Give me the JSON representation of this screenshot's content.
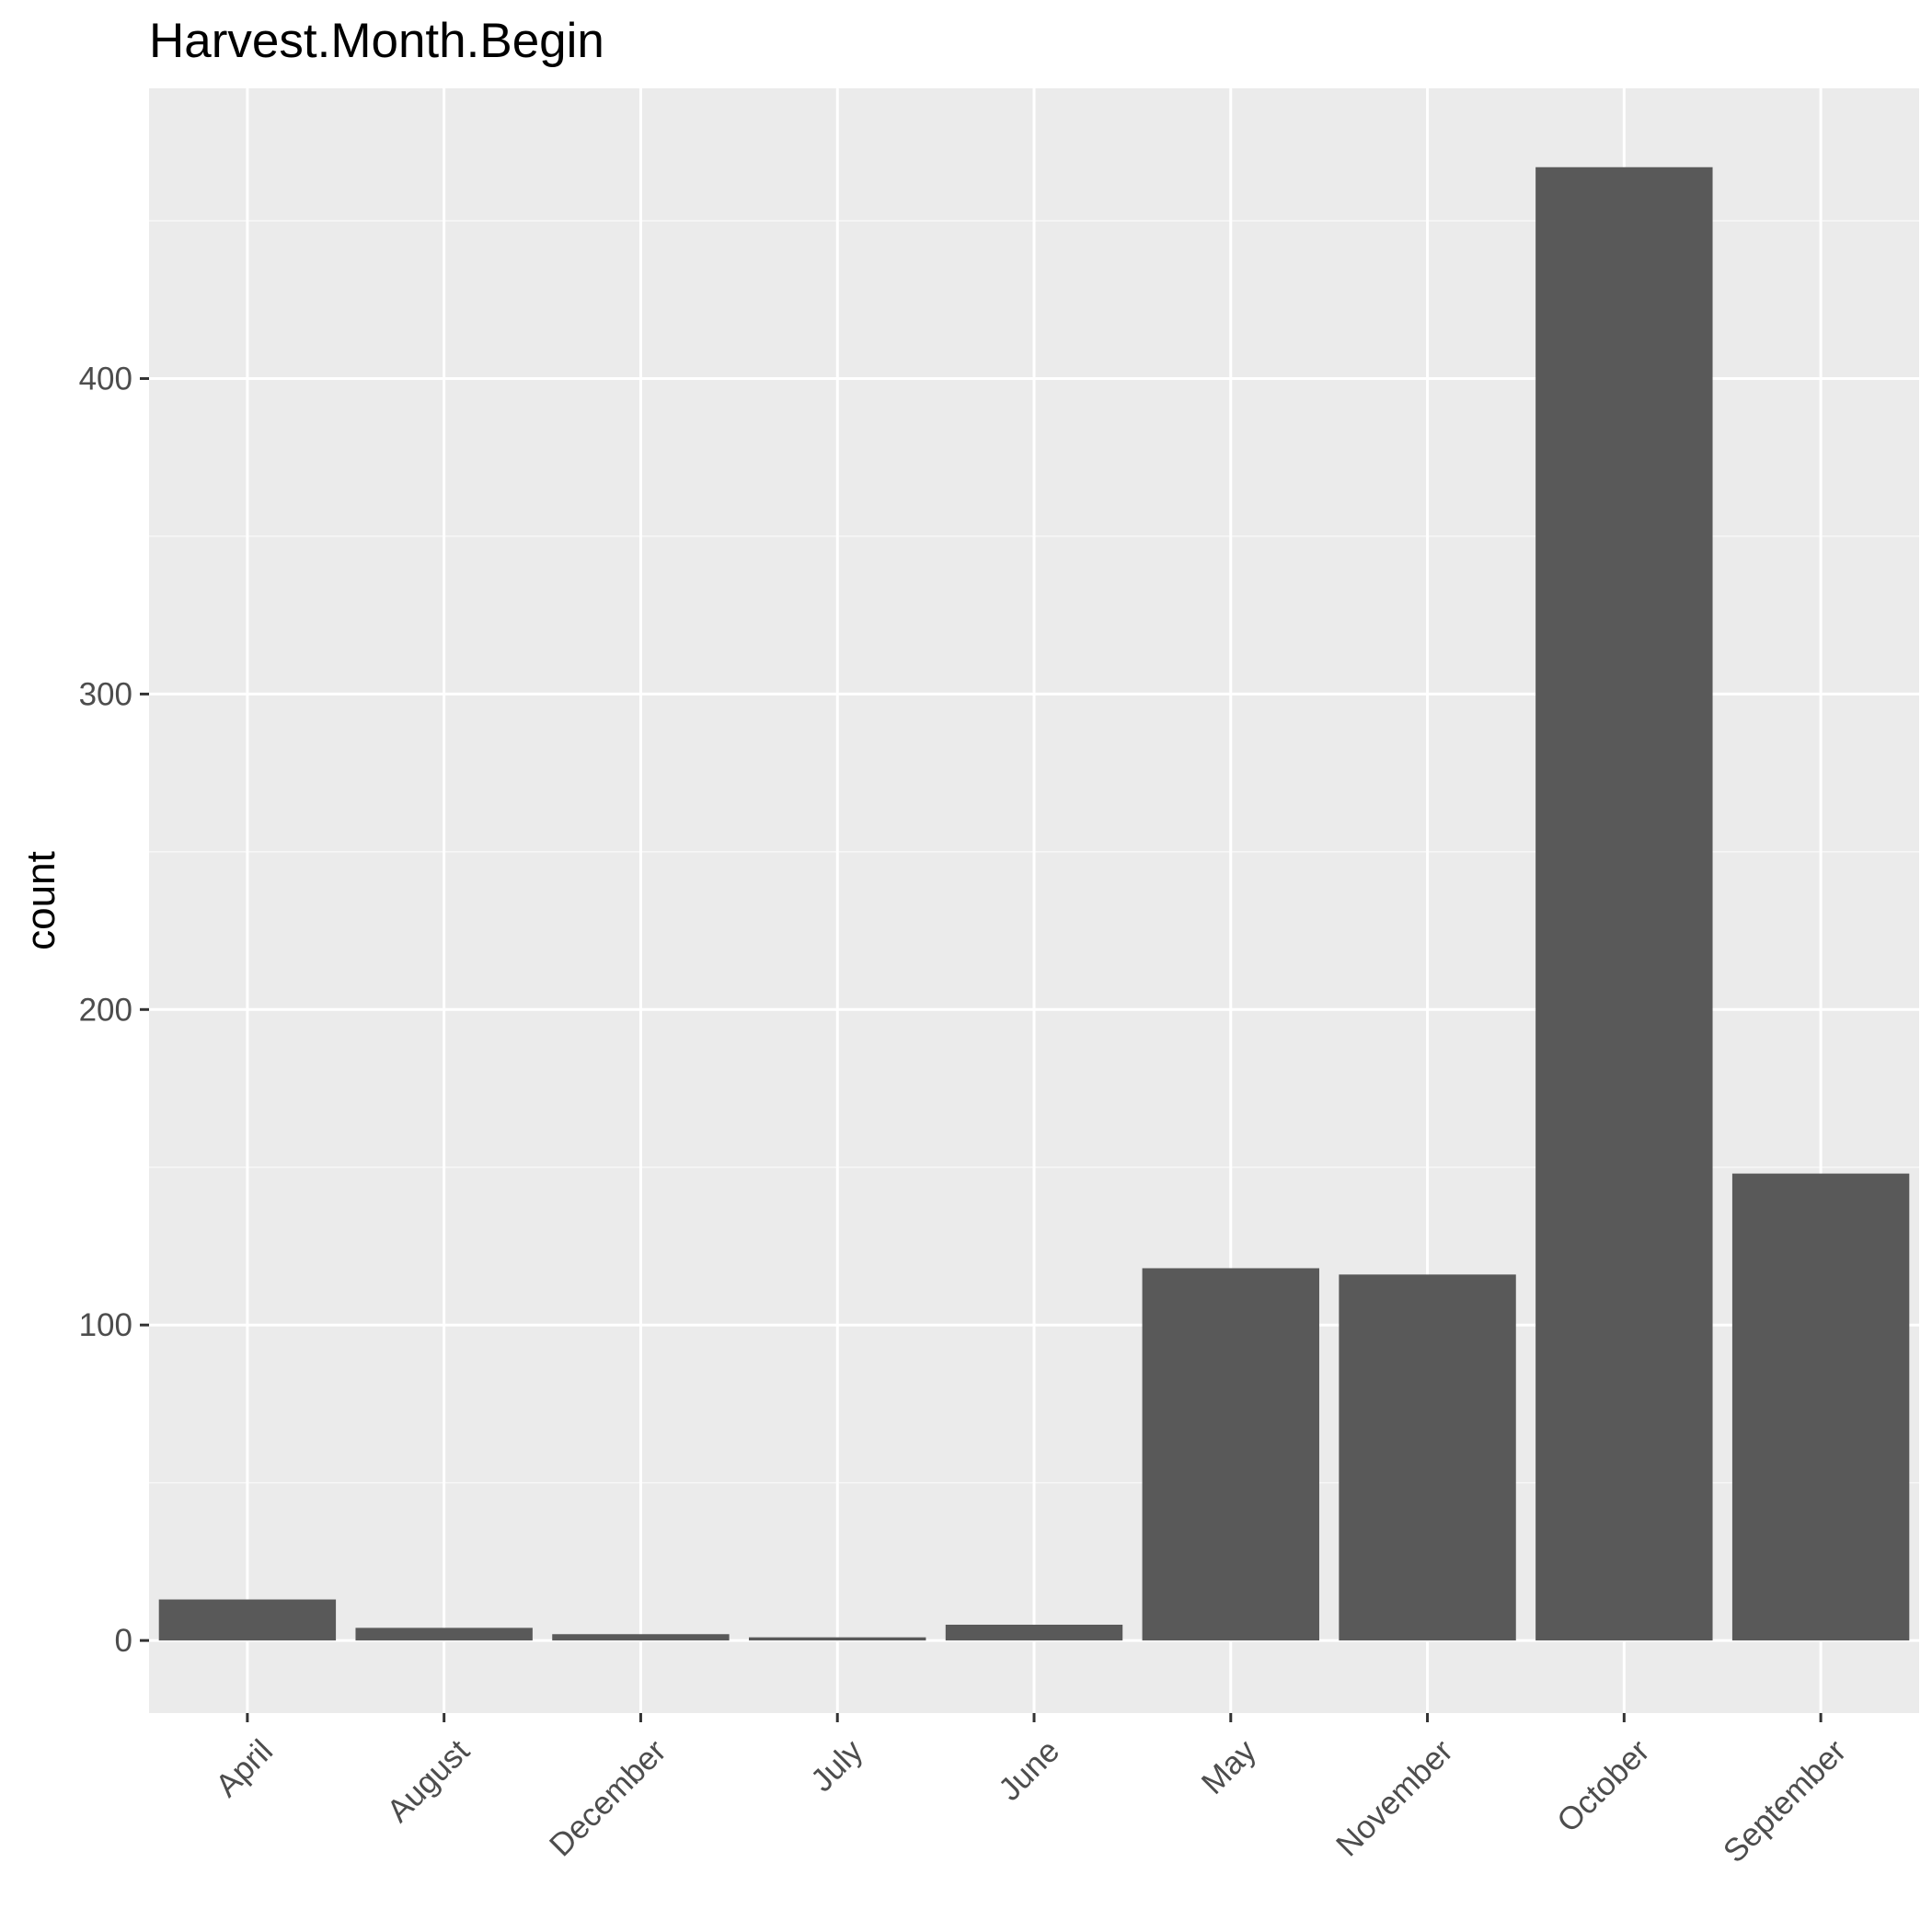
{
  "chart_data": {
    "type": "bar",
    "title": "Harvest.Month.Begin",
    "xlabel": "",
    "ylabel": "count",
    "categories": [
      "April",
      "August",
      "December",
      "July",
      "June",
      "May",
      "November",
      "October",
      "September"
    ],
    "values": [
      13,
      4,
      2,
      1,
      5,
      118,
      116,
      467,
      148
    ],
    "ylim": [
      -23,
      492
    ],
    "yticks": [
      0,
      100,
      200,
      300,
      400
    ],
    "ytick_labels": [
      "0",
      "100",
      "200",
      "300",
      "400"
    ],
    "grid": true,
    "legend": "none",
    "colors": {
      "bar": "#595959",
      "panel": "#ebebeb",
      "grid_major": "#ffffff",
      "grid_minor": "#f7f7f7",
      "tick": "#333333",
      "tick_text": "#4d4d4d"
    }
  }
}
